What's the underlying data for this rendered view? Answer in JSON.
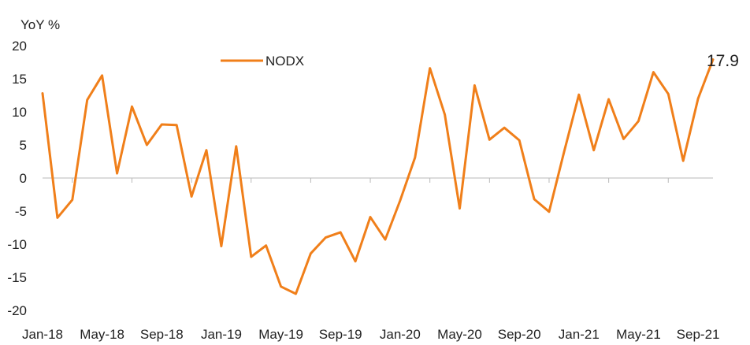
{
  "chart_data": {
    "type": "line",
    "ylabel": "YoY %",
    "ylim": [
      -20,
      20
    ],
    "yticks": [
      20,
      15,
      10,
      5,
      0,
      -5,
      -10,
      -15,
      -20
    ],
    "x_tick_labels": [
      "Jan-18",
      "May-18",
      "Sep-18",
      "Jan-19",
      "May-19",
      "Sep-19",
      "Jan-20",
      "May-20",
      "Sep-20",
      "Jan-21",
      "May-21",
      "Sep-21"
    ],
    "x": [
      "Jan-18",
      "Feb-18",
      "Mar-18",
      "Apr-18",
      "May-18",
      "Jun-18",
      "Jul-18",
      "Aug-18",
      "Sep-18",
      "Oct-18",
      "Nov-18",
      "Dec-18",
      "Jan-19",
      "Feb-19",
      "Mar-19",
      "Apr-19",
      "May-19",
      "Jun-19",
      "Jul-19",
      "Aug-19",
      "Sep-19",
      "Oct-19",
      "Nov-19",
      "Dec-19",
      "Jan-20",
      "Feb-20",
      "Mar-20",
      "Apr-20",
      "May-20",
      "Jun-20",
      "Jul-20",
      "Aug-20",
      "Sep-20",
      "Oct-20",
      "Nov-20",
      "Dec-20",
      "Jan-21",
      "Feb-21",
      "Mar-21",
      "Apr-21",
      "May-21",
      "Jun-21",
      "Jul-21",
      "Aug-21",
      "Sep-21",
      "Oct-21"
    ],
    "series": [
      {
        "name": "NODX",
        "color": "#f07f1a",
        "values": [
          12.8,
          -6.0,
          -3.3,
          11.8,
          15.5,
          0.7,
          10.8,
          5.0,
          8.1,
          8.0,
          -2.8,
          4.2,
          -10.3,
          4.8,
          -11.9,
          -10.2,
          -16.4,
          -17.5,
          -11.4,
          -9.0,
          -8.2,
          -12.6,
          -5.9,
          -9.3,
          -3.4,
          3.1,
          16.6,
          9.6,
          -4.6,
          14.0,
          5.8,
          7.6,
          5.7,
          -3.2,
          -5.1,
          3.9,
          12.6,
          4.2,
          11.9,
          5.9,
          8.6,
          16.0,
          12.7,
          2.6,
          12.0,
          17.9
        ]
      }
    ],
    "annotation": "17.9",
    "legend_position": "top-center",
    "grid": false
  }
}
